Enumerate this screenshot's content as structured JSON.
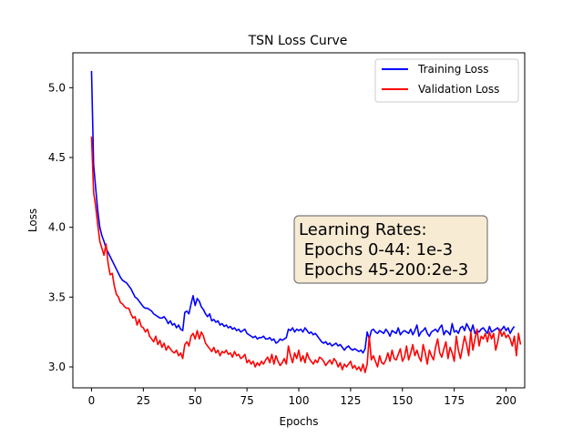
{
  "chart_data": {
    "type": "line",
    "title": "TSN Loss Curve",
    "xlabel": "Epochs",
    "ylabel": "Loss",
    "xlim": [
      -9,
      209
    ],
    "ylim": [
      2.85,
      5.25
    ],
    "xticks": [
      0,
      25,
      50,
      75,
      100,
      125,
      150,
      175,
      200
    ],
    "yticks": [
      3.0,
      3.5,
      4.0,
      4.5,
      5.0
    ],
    "ytick_labels": [
      "3.0",
      "3.5",
      "4.0",
      "4.5",
      "5.0"
    ],
    "grid": false,
    "legend": {
      "placement": "upper-right"
    },
    "annotation": {
      "lines": [
        "Learning Rates:",
        " Epochs 0-44: 1e-3",
        " Epochs 45-200:2e-3"
      ],
      "fill": "#f8ebd4",
      "edge": "#7a7a7a"
    },
    "series": [
      {
        "name": "Training Loss",
        "color": "#0000ff",
        "values": [
          5.12,
          4.45,
          4.28,
          4.12,
          4.0,
          3.94,
          3.9,
          3.85,
          3.82,
          3.79,
          3.76,
          3.73,
          3.7,
          3.67,
          3.64,
          3.62,
          3.61,
          3.6,
          3.58,
          3.56,
          3.53,
          3.5,
          3.49,
          3.47,
          3.45,
          3.43,
          3.42,
          3.42,
          3.41,
          3.4,
          3.38,
          3.37,
          3.36,
          3.35,
          3.35,
          3.36,
          3.34,
          3.31,
          3.33,
          3.3,
          3.31,
          3.28,
          3.3,
          3.27,
          3.26,
          3.39,
          3.4,
          3.38,
          3.45,
          3.51,
          3.44,
          3.49,
          3.47,
          3.43,
          3.41,
          3.38,
          3.36,
          3.38,
          3.33,
          3.34,
          3.32,
          3.33,
          3.3,
          3.31,
          3.29,
          3.3,
          3.28,
          3.29,
          3.27,
          3.28,
          3.26,
          3.27,
          3.25,
          3.26,
          3.27,
          3.24,
          3.23,
          3.22,
          3.21,
          3.22,
          3.2,
          3.21,
          3.21,
          3.22,
          3.2,
          3.2,
          3.21,
          3.19,
          3.2,
          3.17,
          3.18,
          3.2,
          3.19,
          3.2,
          3.21,
          3.27,
          3.26,
          3.28,
          3.25,
          3.27,
          3.26,
          3.27,
          3.25,
          3.28,
          3.26,
          3.24,
          3.25,
          3.23,
          3.24,
          3.22,
          3.2,
          3.18,
          3.17,
          3.18,
          3.16,
          3.17,
          3.15,
          3.16,
          3.17,
          3.15,
          3.16,
          3.14,
          3.12,
          3.14,
          3.15,
          3.13,
          3.12,
          3.13,
          3.12,
          3.11,
          3.12,
          3.1,
          3.13,
          3.25,
          3.2,
          3.26,
          3.27,
          3.25,
          3.24,
          3.26,
          3.25,
          3.24,
          3.27,
          3.25,
          3.22,
          3.26,
          3.25,
          3.24,
          3.28,
          3.23,
          3.25,
          3.26,
          3.25,
          3.24,
          3.27,
          3.23,
          3.26,
          3.3,
          3.22,
          3.25,
          3.26,
          3.28,
          3.24,
          3.22,
          3.25,
          3.26,
          3.27,
          3.25,
          3.28,
          3.3,
          3.23,
          3.26,
          3.25,
          3.23,
          3.31,
          3.25,
          3.26,
          3.24,
          3.28,
          3.29,
          3.26,
          3.31,
          3.28,
          3.25,
          3.3,
          3.24,
          3.26,
          3.25,
          3.27,
          3.28,
          3.26,
          3.24,
          3.29,
          3.25,
          3.26,
          3.27,
          3.28,
          3.25,
          3.27,
          3.29,
          3.26,
          3.28,
          3.24,
          3.27,
          3.29
        ]
      },
      {
        "name": "Validation Loss",
        "color": "#ff0000",
        "values": [
          4.65,
          4.25,
          4.15,
          4.02,
          3.9,
          3.85,
          3.8,
          3.88,
          3.74,
          3.66,
          3.67,
          3.58,
          3.52,
          3.5,
          3.46,
          3.45,
          3.43,
          3.42,
          3.42,
          3.38,
          3.35,
          3.36,
          3.3,
          3.34,
          3.29,
          3.28,
          3.25,
          3.27,
          3.22,
          3.2,
          3.18,
          3.22,
          3.16,
          3.19,
          3.14,
          3.17,
          3.12,
          3.15,
          3.13,
          3.11,
          3.1,
          3.12,
          3.08,
          3.1,
          3.06,
          3.16,
          3.18,
          3.15,
          3.22,
          3.24,
          3.2,
          3.26,
          3.2,
          3.25,
          3.22,
          3.17,
          3.15,
          3.13,
          3.11,
          3.14,
          3.1,
          3.12,
          3.08,
          3.11,
          3.1,
          3.12,
          3.09,
          3.1,
          3.07,
          3.11,
          3.08,
          3.09,
          3.06,
          3.07,
          3.09,
          3.03,
          3.05,
          3.02,
          3.04,
          3.0,
          3.03,
          3.01,
          3.04,
          3.02,
          3.05,
          3.07,
          3.03,
          3.09,
          3.02,
          3.08,
          3.04,
          3.01,
          3.03,
          3.06,
          3.02,
          3.15,
          3.08,
          3.03,
          3.1,
          3.06,
          3.12,
          3.04,
          3.08,
          3.03,
          3.1,
          3.06,
          3.04,
          3.02,
          3.05,
          3.03,
          3.07,
          3.06,
          3.04,
          3.01,
          3.03,
          3.05,
          3.02,
          3.06,
          3.04,
          3.0,
          3.03,
          2.98,
          3.02,
          3.0,
          3.02,
          3.04,
          2.99,
          3.01,
          2.98,
          3.0,
          2.97,
          3.02,
          2.96,
          3.02,
          3.22,
          3.05,
          3.08,
          3.04,
          3.0,
          3.08,
          3.03,
          3.02,
          3.05,
          3.1,
          3.04,
          3.12,
          3.06,
          3.05,
          3.09,
          3.13,
          3.04,
          3.07,
          3.15,
          3.05,
          3.1,
          3.16,
          3.08,
          3.12,
          3.07,
          3.04,
          3.16,
          3.1,
          3.02,
          3.12,
          3.08,
          3.05,
          3.14,
          3.2,
          3.1,
          3.07,
          3.13,
          3.18,
          3.06,
          3.14,
          3.1,
          3.04,
          3.22,
          3.12,
          3.06,
          3.14,
          3.22,
          3.16,
          3.08,
          3.25,
          3.12,
          3.2,
          3.27,
          3.15,
          3.22,
          3.2,
          3.24,
          3.18,
          3.25,
          3.2,
          3.24,
          3.12,
          3.18,
          3.27,
          3.22,
          3.25,
          3.21,
          3.23,
          3.2,
          3.15,
          3.22,
          3.08,
          3.24,
          3.16
        ]
      }
    ]
  }
}
